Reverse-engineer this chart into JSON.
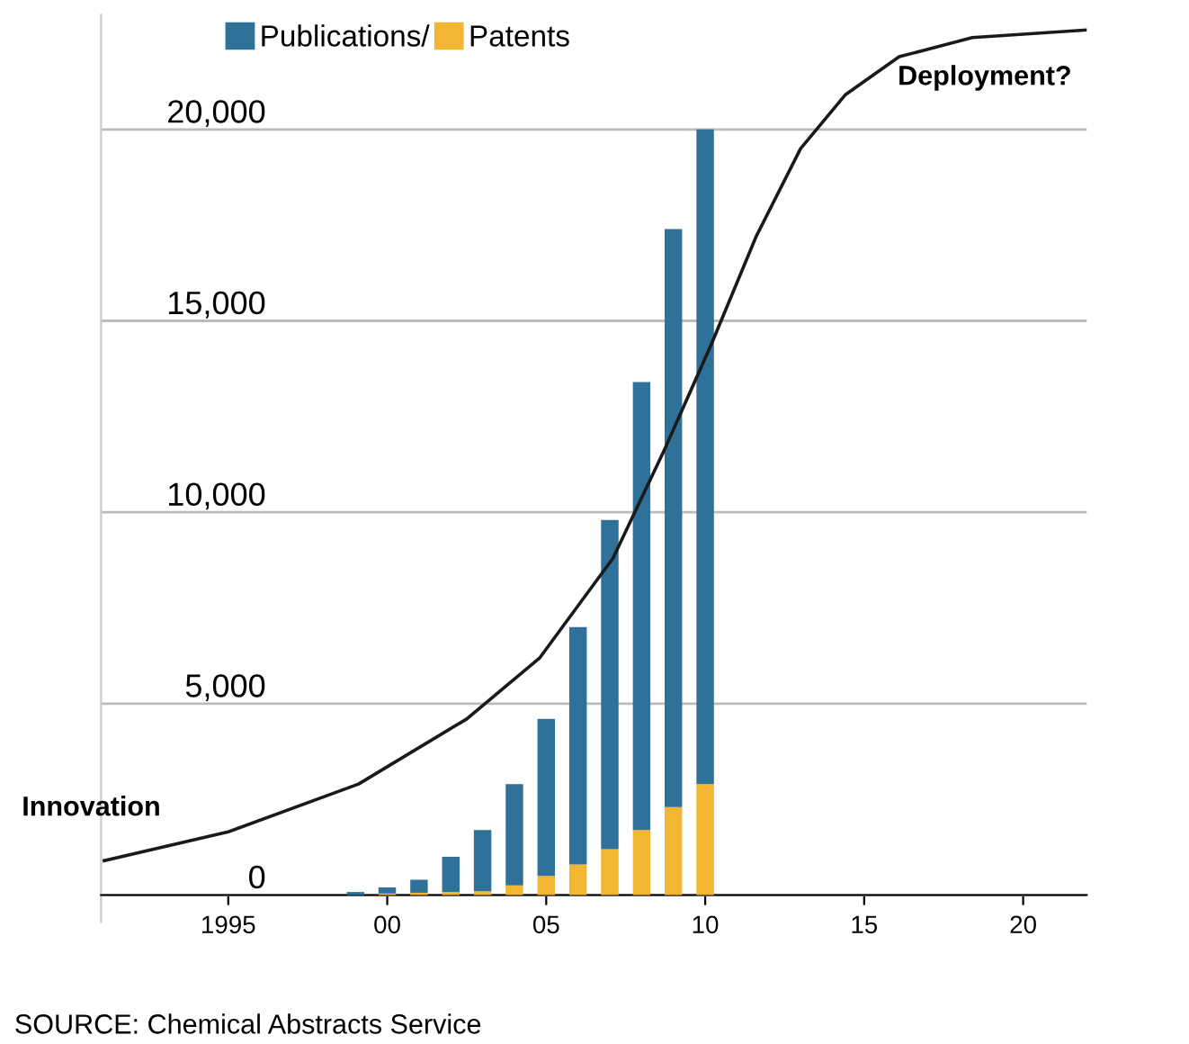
{
  "chart_data": {
    "type": "bar",
    "stacked": true,
    "x": [
      1999,
      2000,
      2001,
      2002,
      2003,
      2004,
      2005,
      2006,
      2007,
      2008,
      2009,
      2010
    ],
    "series": [
      {
        "name": "Patents",
        "color": "#f2b632",
        "values": [
          null,
          40,
          60,
          80,
          100,
          250,
          500,
          800,
          1200,
          1700,
          2300,
          2900
        ]
      },
      {
        "name": "Publications/",
        "color": "#2f7199",
        "values": [
          80,
          160,
          340,
          920,
          1600,
          2650,
          4100,
          6200,
          8600,
          11700,
          15100,
          17100
        ]
      },
      {
        "type": "line",
        "color": "#1a1a1a",
        "x": [
          1991.1,
          1995,
          1999.1,
          2002.5,
          2004.8,
          2007.1,
          2008.7,
          2010.2,
          2011.6,
          2013.0,
          2014.4,
          2016.1,
          2018.4,
          2022
        ],
        "values": [
          900,
          1650,
          2900,
          4600,
          6200,
          8800,
          11600,
          14400,
          17200,
          19500,
          20900,
          21900,
          22400,
          22600
        ]
      }
    ],
    "xlim": [
      1991,
      2022
    ],
    "ylim": [
      -700,
      23000
    ],
    "xticks": [
      1995,
      {
        "value": 2000,
        "label": "00"
      },
      {
        "value": 2005,
        "label": "05"
      },
      {
        "value": 2010,
        "label": "10"
      },
      {
        "value": 2015,
        "label": "15"
      },
      {
        "value": 2020,
        "label": "20"
      }
    ],
    "yticks": [
      0,
      {
        "value": 5000,
        "label": "5,000"
      },
      {
        "value": 10000,
        "label": "10,000"
      },
      {
        "value": 15000,
        "label": "15,000"
      },
      {
        "value": 20000,
        "label": "20,000"
      }
    ],
    "grid": "y",
    "legend": "top left",
    "annotations": [
      {
        "text": "Innovation",
        "x": 1991.1,
        "y": 900
      },
      {
        "text": "Deployment?",
        "x": 2022,
        "y": 22600
      },
      "SOURCE: Chemical Abstracts Service"
    ]
  }
}
